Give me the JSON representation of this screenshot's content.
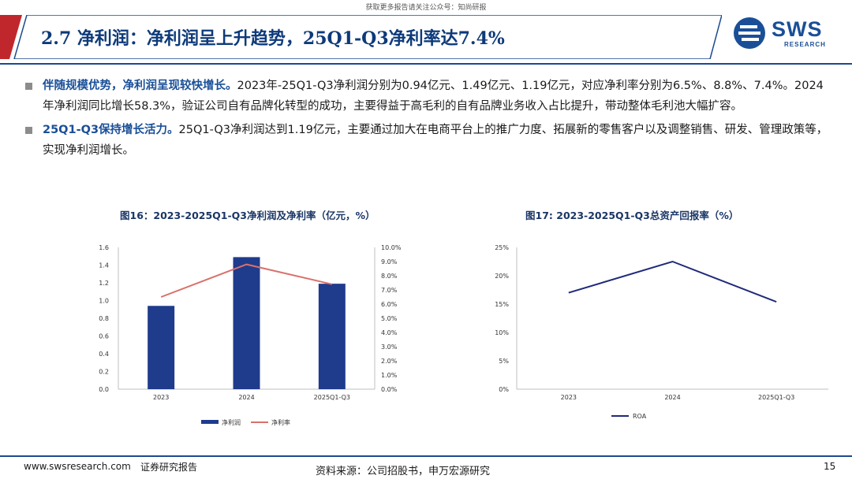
{
  "watermark": "获取更多报告请关注公众号：知尚研报",
  "header": {
    "title": "2.7 净利润：净利润呈上升趋势，25Q1-Q3净利率达7.4%",
    "logo_main": "SWS",
    "logo_sub": "RESEARCH",
    "accent_color": "#1c4a8e",
    "accent_red": "#c0272d"
  },
  "bullets": [
    {
      "lead": "伴随规模优势，净利润呈现较快增长。",
      "text": "2023年-25Q1-Q3净利润分别为0.94亿元、1.49亿元、1.19亿元，对应净利率分别为6.5%、8.8%、7.4%。2024年净利润同比增长58.3%，验证公司自有品牌化转型的成功，主要得益于高毛利的自有品牌业务收入占比提升，带动整体毛利池大幅扩容。"
    },
    {
      "lead": "25Q1-Q3保持增长活力。",
      "text": "25Q1-Q3净利润达到1.19亿元，主要通过加大在电商平台上的推广力度、拓展新的零售客户以及调整销售、研发、管理政策等，实现净利润增长。"
    }
  ],
  "chart_data": [
    {
      "type": "bar",
      "title": "图16：2023-2025Q1-Q3净利润及净利率（亿元，%）",
      "categories": [
        "2023",
        "2024",
        "2025Q1-Q3"
      ],
      "series": [
        {
          "name": "净利润",
          "type": "bar",
          "axis": "left",
          "values": [
            0.94,
            1.49,
            1.19
          ],
          "color": "#1f3b8c"
        },
        {
          "name": "净利率",
          "type": "line",
          "axis": "right",
          "values": [
            6.5,
            8.8,
            7.4
          ],
          "color": "#d9706a"
        }
      ],
      "ylim": [
        0,
        1.6
      ],
      "yticks": [
        "0.0",
        "0.2",
        "0.4",
        "0.6",
        "0.8",
        "1.0",
        "1.2",
        "1.4",
        "1.6"
      ],
      "y2lim": [
        0,
        10
      ],
      "y2ticks": [
        "0.0%",
        "1.0%",
        "2.0%",
        "3.0%",
        "4.0%",
        "5.0%",
        "6.0%",
        "7.0%",
        "8.0%",
        "9.0%",
        "10.0%"
      ],
      "legend": "bottom"
    },
    {
      "type": "line",
      "title": "图17: 2023-2025Q1-Q3总资产回报率（%）",
      "categories": [
        "2023",
        "2024",
        "2025Q1-Q3"
      ],
      "series": [
        {
          "name": "ROA",
          "values": [
            17.0,
            22.5,
            15.4
          ],
          "color": "#1f2a7a"
        }
      ],
      "ylim": [
        0,
        25
      ],
      "yticks": [
        "0%",
        "5%",
        "10%",
        "15%",
        "20%",
        "25%"
      ],
      "legend": "bottom"
    }
  ],
  "footer": {
    "url": "www.swsresearch.com",
    "doc_type": "证券研究报告",
    "source": "资料来源：公司招股书，申万宏源研究",
    "page": "15"
  }
}
